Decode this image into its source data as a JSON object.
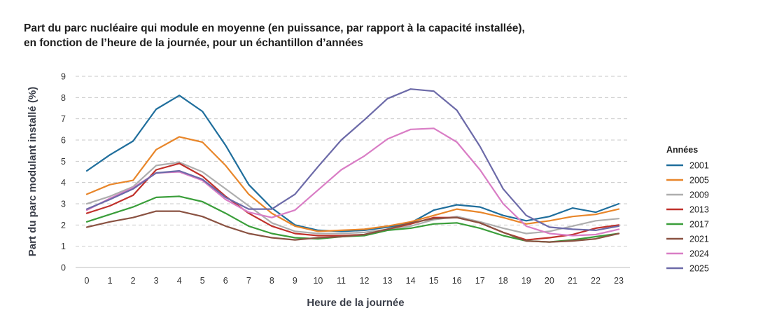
{
  "chart_data": {
    "type": "line",
    "title_line1": "Part du parc nucléaire qui module en moyenne (en puissance, par rapport à la capacité installée),",
    "title_line2": "en fonction de l’heure de la journée, pour un échantillon d’années",
    "xlabel": "Heure de la journée",
    "ylabel": "Part du parc modulant installé (%)",
    "ylim": [
      0,
      9
    ],
    "yticks": [
      "0",
      "1",
      "2",
      "3",
      "4",
      "5",
      "6",
      "7",
      "8",
      "9"
    ],
    "categories": [
      "0",
      "1",
      "2",
      "3",
      "4",
      "5",
      "6",
      "7",
      "8",
      "9",
      "10",
      "11",
      "12",
      "13",
      "14",
      "15",
      "16",
      "17",
      "18",
      "19",
      "20",
      "21",
      "22",
      "23"
    ],
    "legend_title": "Années",
    "grid": true,
    "legend_position": "right",
    "series": [
      {
        "name": "2001",
        "color": "#1f6e9c",
        "values": [
          4.55,
          5.3,
          5.95,
          7.45,
          8.1,
          7.35,
          5.75,
          3.9,
          2.8,
          2.0,
          1.75,
          1.7,
          1.75,
          1.9,
          2.1,
          2.7,
          2.95,
          2.85,
          2.45,
          2.2,
          2.4,
          2.8,
          2.6,
          3.0
        ]
      },
      {
        "name": "2005",
        "color": "#e8862a",
        "values": [
          3.45,
          3.9,
          4.1,
          5.55,
          6.15,
          5.9,
          4.8,
          3.45,
          2.55,
          1.95,
          1.7,
          1.75,
          1.8,
          1.95,
          2.15,
          2.45,
          2.75,
          2.6,
          2.35,
          2.05,
          2.2,
          2.4,
          2.5,
          2.75
        ]
      },
      {
        "name": "2009",
        "color": "#aeaeae",
        "values": [
          3.0,
          3.35,
          3.8,
          4.8,
          4.95,
          4.5,
          3.7,
          2.9,
          2.1,
          1.7,
          1.6,
          1.6,
          1.65,
          1.8,
          1.95,
          2.25,
          2.4,
          2.15,
          1.85,
          1.6,
          1.7,
          1.95,
          2.2,
          2.3
        ]
      },
      {
        "name": "2013",
        "color": "#c0312b",
        "values": [
          2.55,
          2.9,
          3.4,
          4.6,
          4.9,
          4.3,
          3.35,
          2.55,
          1.95,
          1.6,
          1.5,
          1.5,
          1.55,
          1.8,
          2.05,
          2.35,
          2.35,
          2.1,
          1.65,
          1.3,
          1.4,
          1.55,
          1.85,
          2.0
        ]
      },
      {
        "name": "2017",
        "color": "#3a9e3a",
        "values": [
          2.15,
          2.5,
          2.85,
          3.3,
          3.35,
          3.1,
          2.55,
          1.95,
          1.6,
          1.4,
          1.35,
          1.45,
          1.5,
          1.75,
          1.85,
          2.05,
          2.1,
          1.85,
          1.5,
          1.25,
          1.2,
          1.3,
          1.45,
          1.6
        ]
      },
      {
        "name": "2021",
        "color": "#8a5242",
        "values": [
          1.9,
          2.15,
          2.35,
          2.65,
          2.65,
          2.4,
          1.95,
          1.6,
          1.4,
          1.3,
          1.4,
          1.45,
          1.55,
          1.8,
          2.1,
          2.3,
          2.35,
          2.1,
          1.65,
          1.25,
          1.2,
          1.25,
          1.35,
          1.6
        ]
      },
      {
        "name": "2024",
        "color": "#d97dc5",
        "values": [
          2.7,
          3.25,
          3.75,
          4.45,
          4.5,
          4.1,
          3.2,
          2.6,
          2.35,
          2.7,
          3.65,
          4.6,
          5.25,
          6.05,
          6.5,
          6.55,
          5.9,
          4.6,
          3.0,
          1.95,
          1.6,
          1.5,
          1.55,
          1.8
        ]
      },
      {
        "name": "2025",
        "color": "#6c6aa8",
        "values": [
          2.75,
          3.2,
          3.7,
          4.45,
          4.55,
          4.15,
          3.3,
          2.75,
          2.75,
          3.45,
          4.75,
          6.0,
          6.95,
          7.95,
          8.4,
          8.3,
          7.4,
          5.7,
          3.7,
          2.45,
          1.9,
          1.8,
          1.75,
          1.95
        ]
      }
    ]
  }
}
